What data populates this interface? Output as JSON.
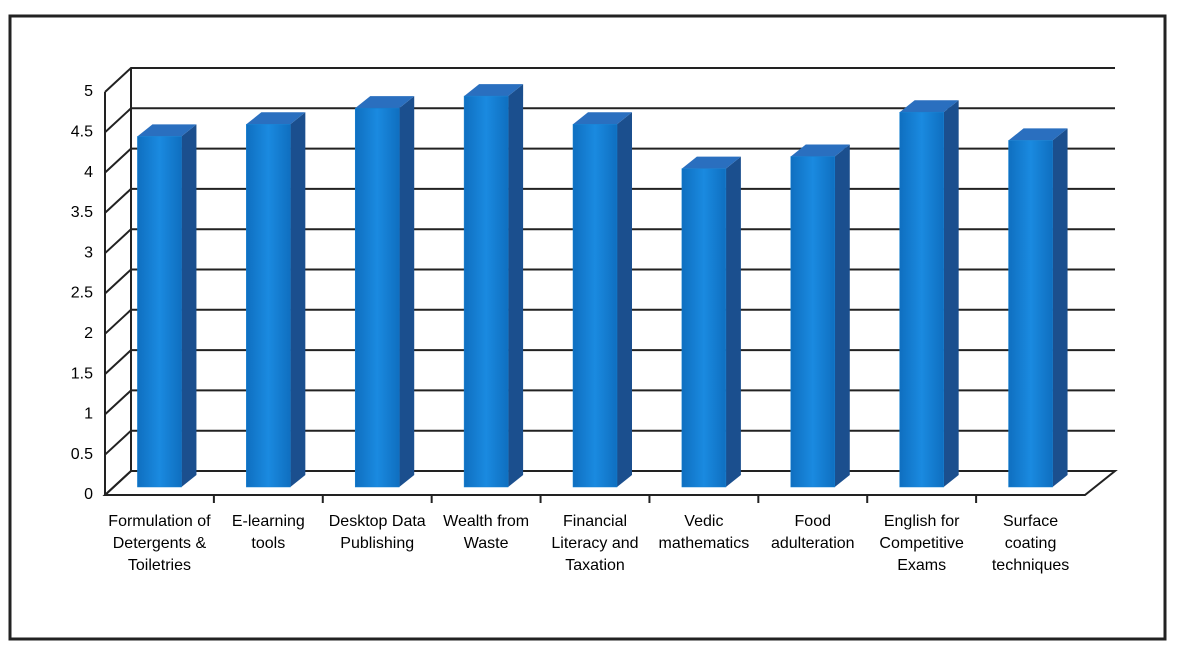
{
  "chart_data": {
    "type": "bar3d",
    "categories": [
      "Formulation of Detergents & Toiletries",
      "E-learning tools",
      "Desktop Data Publishing",
      "Wealth from Waste",
      "Financial Literacy and Taxation",
      "Vedic mathematics",
      "Food adulteration",
      "English for Competitive Exams",
      "Surface coating techniques"
    ],
    "values": [
      4.35,
      4.5,
      4.7,
      4.85,
      4.5,
      3.95,
      4.1,
      4.65,
      4.3
    ],
    "color": "#1580d2",
    "ylim": [
      0,
      5
    ],
    "yticks": [
      0,
      0.5,
      1,
      1.5,
      2,
      2.5,
      3,
      3.5,
      4,
      4.5,
      5
    ],
    "grid": true
  }
}
